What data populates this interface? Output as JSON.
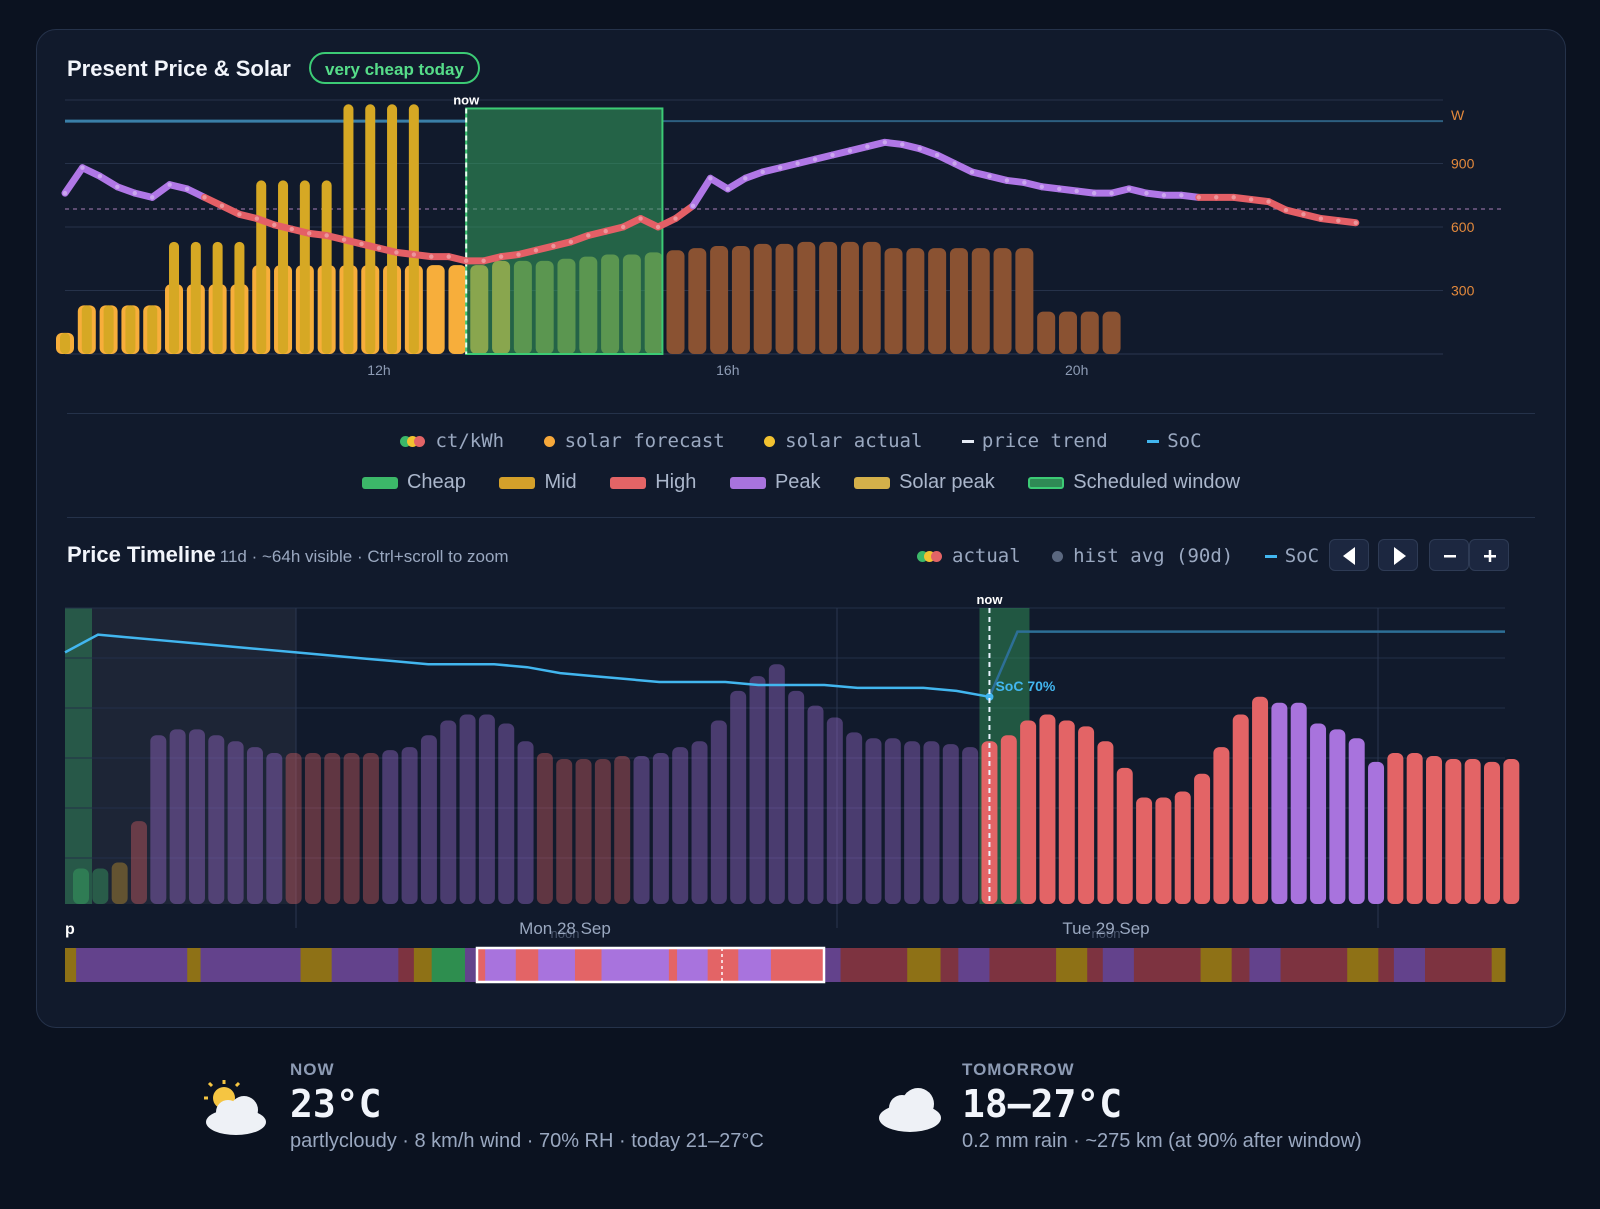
{
  "present": {
    "title": "Present Price & Solar",
    "badge": "very cheap today",
    "now_label": "now",
    "y_unit": "W",
    "y_ticks": [
      "900",
      "600",
      "300"
    ],
    "x_ticks": [
      "12h",
      "16h",
      "20h"
    ]
  },
  "legend_top": {
    "ctkwh": "ct/kWh",
    "solar_forecast": "solar forecast",
    "solar_actual": "solar actual",
    "price_trend": "price trend",
    "soc": "SoC"
  },
  "legend_bottom": {
    "cheap": "Cheap",
    "mid": "Mid",
    "high": "High",
    "peak": "Peak",
    "solar_peak": "Solar peak",
    "scheduled": "Scheduled window"
  },
  "timeline": {
    "title": "Price Timeline",
    "subtitle": "11d · ~64h visible · Ctrl+scroll to zoom",
    "legend_actual": "actual",
    "legend_hist": "hist avg (90d)",
    "legend_soc": "SoC",
    "now_label": "now",
    "soc_label": "SoC 70%",
    "day_labels": [
      "Mon 28 Sep",
      "Tue 29 Sep"
    ],
    "noon_label": "noon",
    "edge_label": "p"
  },
  "weather": {
    "now": {
      "label": "NOW",
      "temp": "23°C",
      "desc": "partlycloudy · 8 km/h wind · 70% RH · today 21–27°C",
      "icon": "partly-cloudy-icon"
    },
    "tomorrow": {
      "label": "TOMORROW",
      "temp": "18–27°C",
      "desc": "0.2 mm rain · ~275 km (at 90% after window)",
      "icon": "cloud-icon"
    }
  },
  "colors": {
    "cheap": "#3cb869",
    "mid": "#d4a02a",
    "high": "#e36466",
    "peak": "#a873dd",
    "solar_forecast": "#f7a83a",
    "solar_actual": "#f2c230",
    "soc": "#42b6ef",
    "scheduled": "#2f8a55"
  },
  "chart_data": [
    {
      "type": "bar",
      "title": "Present Price & Solar",
      "ylabel": "W",
      "ylim": [
        0,
        1200
      ],
      "x_ticks": [
        "12h",
        "16h",
        "20h"
      ],
      "hours": [
        8.4,
        24.2
      ],
      "now_hour": 13.0,
      "scheduled_window": [
        13.0,
        15.25
      ],
      "series": [
        {
          "name": "solar forecast",
          "hour_start": 8.4,
          "hour_step": 0.25,
          "values": [
            100,
            230,
            230,
            230,
            230,
            330,
            330,
            330,
            330,
            420,
            420,
            420,
            420,
            420,
            420,
            420,
            420,
            420,
            420,
            420,
            440,
            440,
            440,
            450,
            460,
            470,
            470,
            480,
            490,
            500,
            510,
            510,
            520,
            520,
            530,
            530,
            530,
            530,
            500,
            500,
            500,
            500,
            500,
            500,
            500,
            200,
            200,
            200,
            200
          ]
        },
        {
          "name": "solar actual",
          "hour_start": 8.4,
          "hour_step": 0.25,
          "values": [
            100,
            230,
            230,
            230,
            230,
            530,
            530,
            530,
            530,
            820,
            820,
            820,
            820,
            1180,
            1180,
            1180,
            1180
          ]
        },
        {
          "name": "price trend",
          "hour_start": 8.4,
          "hour_step": 0.2,
          "values": [
            760,
            880,
            840,
            790,
            760,
            740,
            800,
            780,
            740,
            700,
            660,
            640,
            610,
            590,
            570,
            560,
            540,
            520,
            500,
            480,
            470,
            460,
            460,
            440,
            440,
            460,
            470,
            490,
            510,
            530,
            560,
            580,
            600,
            640,
            600,
            640,
            700,
            830,
            780,
            830,
            860,
            880,
            900,
            920,
            940,
            960,
            980,
            1000,
            990,
            970,
            940,
            900,
            860,
            840,
            820,
            810,
            790,
            780,
            770,
            760,
            760,
            780,
            760,
            750,
            750,
            740,
            740,
            740,
            730,
            720,
            680,
            660,
            640,
            630,
            620
          ]
        },
        {
          "name": "SoC",
          "values": [
            1100
          ]
        }
      ]
    },
    {
      "type": "bar",
      "title": "Price Timeline",
      "x_labels": [
        "Mon 28 Sep",
        "Tue 29 Sep"
      ],
      "now_index": 47,
      "colors_by_band": [
        "cheap",
        "mid",
        "high",
        "peak"
      ],
      "series": [
        {
          "name": "actual",
          "values": [
            12,
            12,
            14,
            28,
            57,
            59,
            59,
            57,
            55,
            53,
            51,
            51,
            51,
            51,
            51,
            51,
            52,
            53,
            57,
            62,
            64,
            64,
            61,
            55,
            51,
            49,
            49,
            49,
            50,
            50,
            51,
            53,
            55,
            62,
            72,
            77,
            81,
            72,
            67,
            63,
            58,
            56,
            56,
            55,
            55,
            54,
            53,
            55,
            57,
            62,
            64,
            62,
            60,
            55,
            46,
            36,
            36,
            38,
            44,
            53,
            64,
            70,
            68,
            68,
            61,
            59,
            56,
            48,
            51,
            51,
            50,
            49,
            49,
            48,
            49
          ],
          "bands": [
            "cheap",
            "cheap",
            "mid",
            "high",
            "peak",
            "peak",
            "peak",
            "peak",
            "peak",
            "peak",
            "peak",
            "high",
            "high",
            "high",
            "high",
            "high",
            "peak",
            "peak",
            "peak",
            "peak",
            "peak",
            "peak",
            "peak",
            "peak",
            "high",
            "high",
            "high",
            "high",
            "high",
            "peak",
            "peak",
            "peak",
            "peak",
            "peak",
            "peak",
            "peak",
            "peak",
            "peak",
            "peak",
            "peak",
            "peak",
            "peak",
            "peak",
            "peak",
            "peak",
            "peak",
            "peak",
            "high",
            "high",
            "high",
            "high",
            "high",
            "high",
            "high",
            "high",
            "high",
            "high",
            "high",
            "high",
            "high",
            "high",
            "high",
            "peak",
            "peak",
            "peak",
            "peak",
            "peak",
            "peak",
            "high",
            "high",
            "high",
            "high",
            "high",
            "high",
            "high"
          ]
        },
        {
          "name": "SoC",
          "values": [
            85,
            91,
            90,
            89,
            88,
            87,
            86,
            85,
            84,
            83,
            82,
            81,
            81,
            81,
            80,
            78,
            77,
            76,
            75,
            75,
            75,
            74,
            74,
            74,
            73,
            73,
            73,
            72,
            70,
            92,
            92,
            92,
            92
          ]
        }
      ]
    }
  ]
}
